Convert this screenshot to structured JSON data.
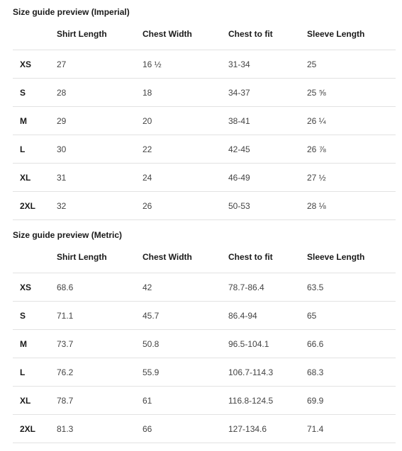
{
  "imperial": {
    "title": "Size guide preview (Imperial)",
    "headers": [
      "",
      "Shirt Length",
      "Chest Width",
      "Chest to fit",
      "Sleeve Length"
    ],
    "rows": [
      [
        "XS",
        "27",
        "16 ½",
        "31-34",
        "25"
      ],
      [
        "S",
        "28",
        "18",
        "34-37",
        "25 ⅝"
      ],
      [
        "M",
        "29",
        "20",
        "38-41",
        "26 ¼"
      ],
      [
        "L",
        "30",
        "22",
        "42-45",
        "26 ⅞"
      ],
      [
        "XL",
        "31",
        "24",
        "46-49",
        "27 ½"
      ],
      [
        "2XL",
        "32",
        "26",
        "50-53",
        "28 ⅛"
      ]
    ]
  },
  "metric": {
    "title": "Size guide preview (Metric)",
    "headers": [
      "",
      "Shirt Length",
      "Chest Width",
      "Chest to fit",
      "Sleeve Length"
    ],
    "rows": [
      [
        "XS",
        "68.6",
        "42",
        "78.7-86.4",
        "63.5"
      ],
      [
        "S",
        "71.1",
        "45.7",
        "86.4-94",
        "65"
      ],
      [
        "M",
        "73.7",
        "50.8",
        "96.5-104.1",
        "66.6"
      ],
      [
        "L",
        "76.2",
        "55.9",
        "106.7-114.3",
        "68.3"
      ],
      [
        "XL",
        "78.7",
        "61",
        "116.8-124.5",
        "69.9"
      ],
      [
        "2XL",
        "81.3",
        "66",
        "127-134.6",
        "71.4"
      ]
    ]
  }
}
